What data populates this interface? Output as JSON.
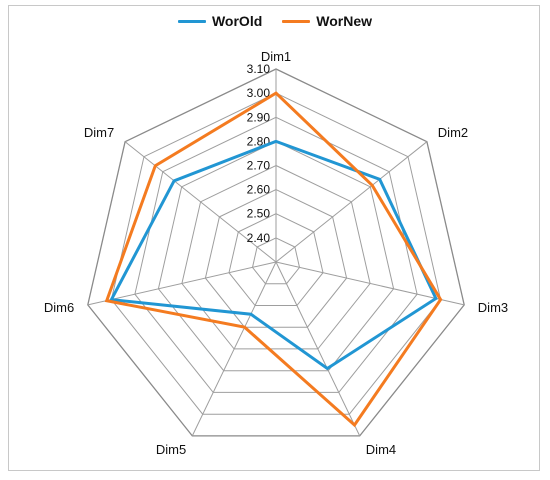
{
  "chart_data": {
    "type": "radar",
    "title": "",
    "categories": [
      "Dim1",
      "Dim2",
      "Dim3",
      "Dim4",
      "Dim5",
      "Dim6",
      "Dim7"
    ],
    "rlim": [
      2.3,
      3.1
    ],
    "ticks": [
      2.4,
      2.5,
      2.6,
      2.7,
      2.8,
      2.9,
      3.0,
      3.1
    ],
    "tick_labels": [
      "2.40",
      "2.50",
      "2.60",
      "2.70",
      "2.80",
      "2.90",
      "3.00",
      "3.10"
    ],
    "grid": true,
    "legend_position": "top",
    "series": [
      {
        "name": "WorOld",
        "color": "#2196d3",
        "values": [
          2.8,
          2.85,
          2.98,
          2.79,
          2.54,
          3.0,
          2.84
        ]
      },
      {
        "name": "WorNew",
        "color": "#f47b20",
        "values": [
          3.0,
          2.81,
          3.0,
          3.05,
          2.6,
          3.02,
          2.94
        ]
      }
    ]
  }
}
